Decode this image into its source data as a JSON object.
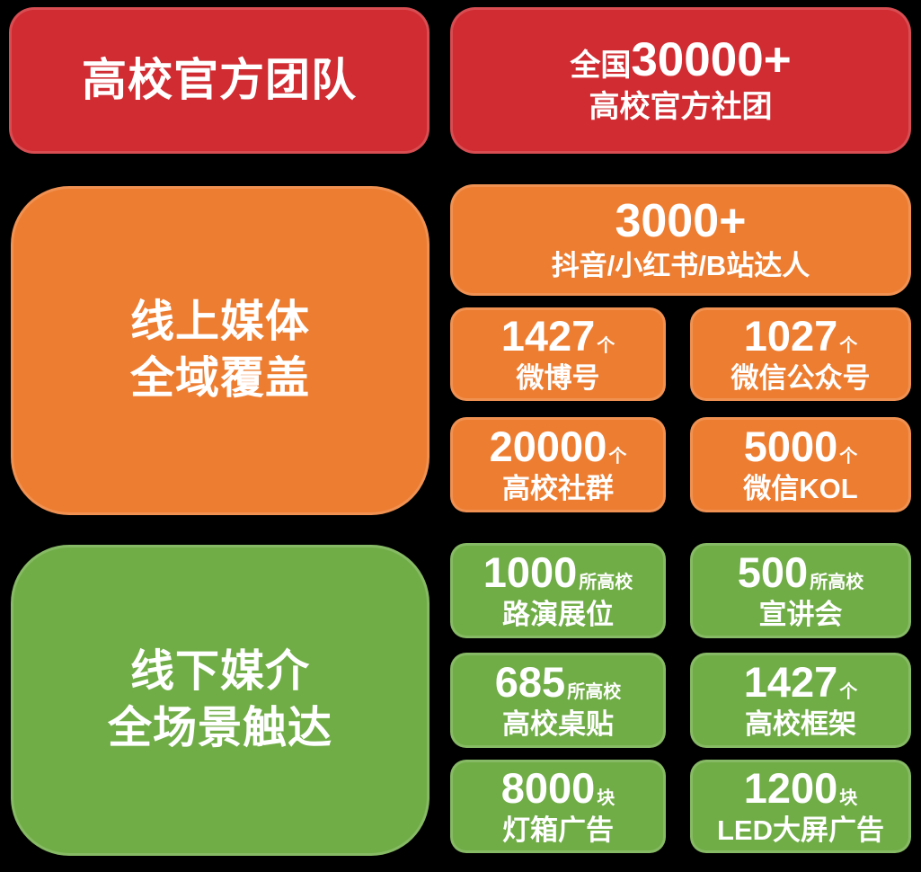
{
  "colors": {
    "red": "#d02c32",
    "orange": "#ed7d31",
    "green": "#70ad47",
    "background": "#000000",
    "text": "#ffffff"
  },
  "team": {
    "title": "高校官方团队",
    "stat_prefix": "全国",
    "stat_number": "30000+",
    "stat_label": "高校官方社团"
  },
  "online": {
    "title_line1": "线上媒体",
    "title_line2": "全域覆盖",
    "hero_number": "3000+",
    "hero_label": "抖音/小红书/B站达人",
    "stats": [
      {
        "number": "1427",
        "unit": "个",
        "label": "微博号"
      },
      {
        "number": "1027",
        "unit": "个",
        "label": "微信公众号"
      },
      {
        "number": "20000",
        "unit": "个",
        "label": "高校社群"
      },
      {
        "number": "5000",
        "unit": "个",
        "label": "微信KOL"
      }
    ]
  },
  "offline": {
    "title_line1": "线下媒介",
    "title_line2": "全场景触达",
    "stats": [
      {
        "number": "1000",
        "unit": "所高校",
        "label": "路演展位"
      },
      {
        "number": "500",
        "unit": "所高校",
        "label": "宣讲会"
      },
      {
        "number": "685",
        "unit": "所高校",
        "label": "高校桌贴"
      },
      {
        "number": "1427",
        "unit": "个",
        "label": "高校框架"
      },
      {
        "number": "8000",
        "unit": "块",
        "label": "灯箱广告"
      },
      {
        "number": "1200",
        "unit": "块",
        "label": "LED大屏广告"
      }
    ]
  }
}
